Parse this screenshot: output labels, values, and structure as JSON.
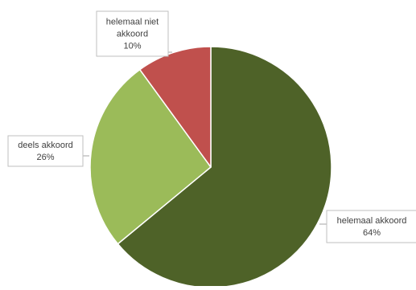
{
  "chart_data": {
    "type": "pie",
    "title": "",
    "slices": [
      {
        "label_lines": [
          "helemaal akkoord"
        ],
        "percent_text": "64%",
        "value": 64,
        "color": "#4e6228"
      },
      {
        "label_lines": [
          "deels akkoord"
        ],
        "percent_text": "26%",
        "value": 26,
        "color": "#9bbb59"
      },
      {
        "label_lines": [
          "helemaal niet",
          "akkoord"
        ],
        "percent_text": "10%",
        "value": 10,
        "color": "#c0504d"
      }
    ],
    "start_angle_deg": 0,
    "direction": "clockwise",
    "legend": "none",
    "data_labels": "callouts"
  }
}
